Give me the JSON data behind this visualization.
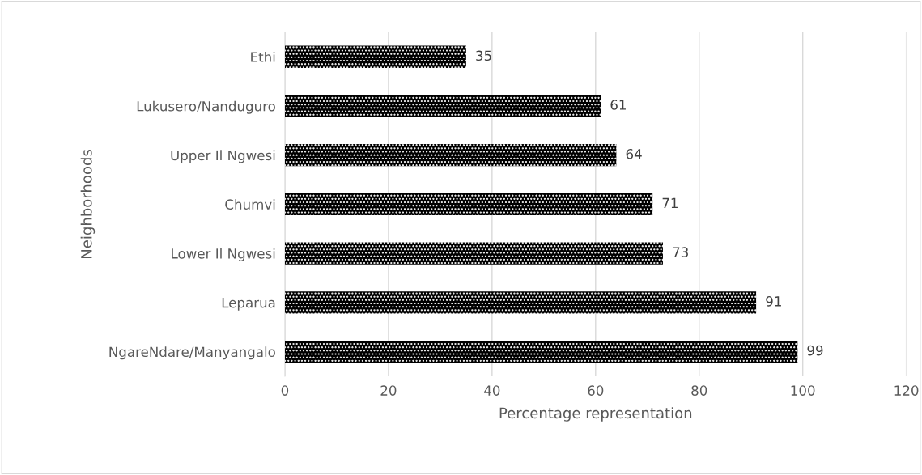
{
  "chart_data": {
    "type": "bar",
    "orientation": "horizontal",
    "xlabel": "Percentage representation",
    "ylabel": "Neighborhoods",
    "categories": [
      "Ethi",
      "Lukusero/Nanduguro",
      "Upper Il Ngwesi",
      "Chumvi",
      "Lower Il Ngwesi",
      "Leparua",
      "NgareNdare/Manyangalo"
    ],
    "values": [
      35,
      61,
      64,
      71,
      73,
      91,
      99
    ],
    "color": "#000000",
    "xlim": [
      0,
      120
    ],
    "xticks": [
      0,
      20,
      40,
      60,
      80,
      100,
      120
    ],
    "grid": "x",
    "data_labels": true,
    "legend": false
  }
}
